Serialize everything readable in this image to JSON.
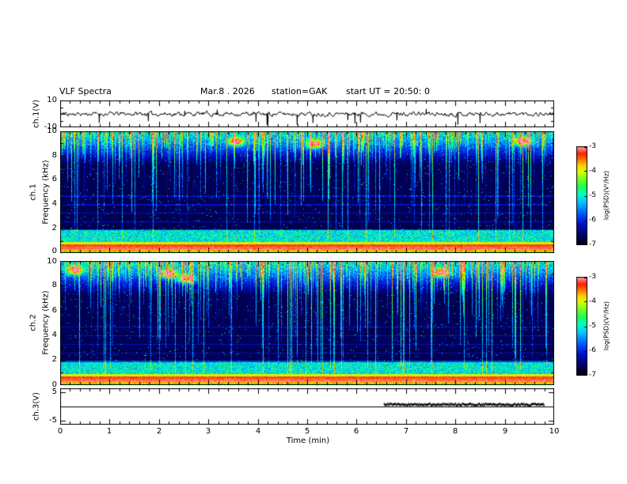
{
  "header": {
    "title": "VLF Spectra",
    "date": "Mar.8 . 2026",
    "station": "station=GAK",
    "start_ut": "start UT =  20:50: 0"
  },
  "xaxis": {
    "label": "Time (min)",
    "ticks": [
      "0",
      "1",
      "2",
      "3",
      "4",
      "5",
      "6",
      "7",
      "8",
      "9",
      "10"
    ]
  },
  "panels": {
    "ch1_wave": {
      "label": "ch.1(V)",
      "ytop": "10",
      "ybottom": "-10"
    },
    "ch1_spec": {
      "channel": "ch.1",
      "ylabel": "Frequency (kHz)",
      "yticks": [
        "10",
        "8",
        "6",
        "4",
        "2",
        "0"
      ]
    },
    "ch2_spec": {
      "channel": "ch.2",
      "ylabel": "Frequency (kHz)",
      "yticks": [
        "10",
        "8",
        "6",
        "4",
        "2",
        "0"
      ]
    },
    "ch3": {
      "label": "ch.3(V)",
      "ytop": "5",
      "ybottom": "-5"
    }
  },
  "colorbar": {
    "label": "log(PSD)(V²/Hz)",
    "ticks": [
      "-3",
      "-4",
      "-5",
      "-6",
      "-7"
    ],
    "stops": [
      [
        0.0,
        "#000000"
      ],
      [
        0.1,
        "#000060"
      ],
      [
        0.22,
        "#0010c8"
      ],
      [
        0.33,
        "#0060ff"
      ],
      [
        0.44,
        "#00c8ff"
      ],
      [
        0.52,
        "#00ffc8"
      ],
      [
        0.6,
        "#20ff50"
      ],
      [
        0.68,
        "#80ff20"
      ],
      [
        0.75,
        "#d8ff00"
      ],
      [
        0.81,
        "#ffd000"
      ],
      [
        0.87,
        "#ff7000"
      ],
      [
        0.93,
        "#ff2000"
      ],
      [
        1.0,
        "#ffa0b4"
      ]
    ]
  },
  "chart_data": [
    {
      "id": "ch1_waveform",
      "type": "line",
      "channel": "ch.1(V)",
      "xlim": [
        0,
        10
      ],
      "ylim": [
        -10,
        10
      ],
      "seed": 11,
      "noise_v": 1.3,
      "spikes": 14,
      "description": "Broadband noise trace around 0 V (~±1.5 V) with ~14 impulsive negative spikes reaching -5 to -9 V across 0-10 min"
    },
    {
      "id": "ch1_spectrogram",
      "type": "heatmap",
      "channel": "ch.1",
      "xlabel": "Time (min)",
      "ylabel": "Frequency (kHz)",
      "xlim": [
        0,
        10
      ],
      "ylim": [
        0,
        10
      ],
      "zlabel": "log(PSD)(V²/Hz)",
      "zlim": [
        -7,
        -3
      ],
      "seed": 21,
      "features": {
        "background_psd": -6.8,
        "dense_sferic_band_khz": [
          7.3,
          10
        ],
        "vertical_sferic_streaks": "~50% of time columns, green/cyan, extending down from 10 kHz to varying depths",
        "hiss_band_khz": [
          1.0,
          1.9
        ],
        "strong_powerline_band_khz": [
          0.0,
          0.95
        ],
        "faint_horizontal_lines_khz": [
          1.95,
          2.6,
          3.3,
          4.0,
          4.7
        ],
        "hot_spots": [
          {
            "t_min": 3.55,
            "f_khz": 9.2
          },
          {
            "t_min": 5.15,
            "f_khz": 9.0
          },
          {
            "t_min": 9.35,
            "f_khz": 9.2
          }
        ]
      }
    },
    {
      "id": "ch2_spectrogram",
      "type": "heatmap",
      "channel": "ch.2",
      "xlabel": "Time (min)",
      "ylabel": "Frequency (kHz)",
      "xlim": [
        0,
        10
      ],
      "ylim": [
        0,
        10
      ],
      "zlabel": "log(PSD)(V²/Hz)",
      "zlim": [
        -7,
        -3
      ],
      "seed": 22,
      "features": {
        "background_psd": -6.8,
        "dense_sferic_band_khz": [
          7.3,
          10
        ],
        "vertical_sferic_streaks": "~50% of time columns, green/cyan, extending down from 10 kHz to varying depths",
        "hiss_band_khz": [
          1.0,
          1.9
        ],
        "strong_powerline_band_khz": [
          0.0,
          0.95
        ],
        "faint_horizontal_lines_khz": [
          1.95,
          2.6,
          3.3,
          4.0,
          4.7
        ],
        "hot_spots": [
          {
            "t_min": 0.3,
            "f_khz": 9.3
          },
          {
            "t_min": 2.2,
            "f_khz": 9.0
          },
          {
            "t_min": 2.55,
            "f_khz": 8.6
          },
          {
            "t_min": 7.7,
            "f_khz": 9.1
          }
        ]
      }
    },
    {
      "id": "ch3_line",
      "type": "line",
      "channel": "ch.3(V)",
      "xlim": [
        0,
        10
      ],
      "ylim": [
        -6.5,
        6.5
      ],
      "yticks": [
        5,
        -5
      ],
      "baseline_v": 0,
      "step": {
        "start_min": 6.55,
        "end_min": 9.8,
        "value_v": 0.7
      },
      "description": "Flat 0 V baseline across full record with a thick noisy positive step (~+0.7 V) from ~6.5 min to ~9.8 min"
    }
  ]
}
